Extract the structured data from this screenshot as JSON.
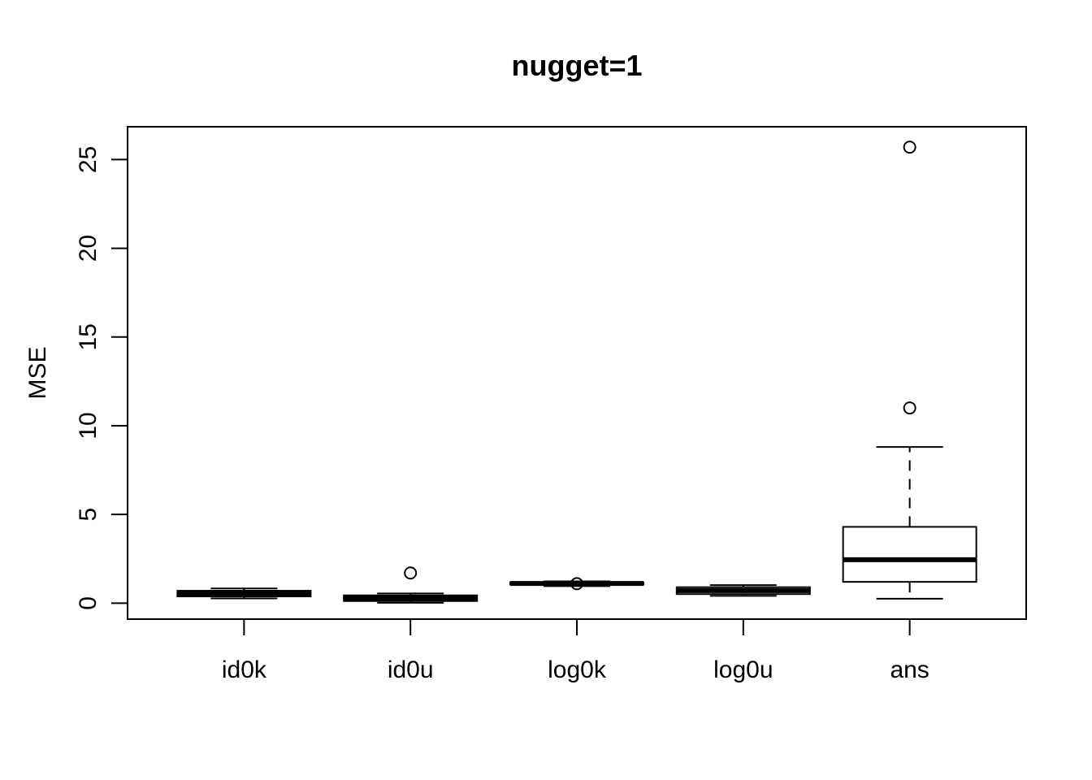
{
  "figure": {
    "background": "#ffffff",
    "foreground": "#000000"
  },
  "chart_data": {
    "type": "boxplot",
    "title": "nugget=1",
    "xlabel": "",
    "ylabel": "MSE",
    "categories": [
      "id0k",
      "id0u",
      "log0k",
      "log0u",
      "ans"
    ],
    "y_ticks": [
      0,
      5,
      10,
      15,
      20,
      25
    ],
    "ylim": [
      -0.9,
      26.85
    ],
    "grid": false,
    "legend": "none",
    "series": [
      {
        "name": "id0k",
        "whisker_low": 0.27,
        "q1": 0.38,
        "median": 0.55,
        "q3": 0.7,
        "whisker_high": 0.83,
        "outliers": []
      },
      {
        "name": "id0u",
        "whisker_low": 0.02,
        "q1": 0.12,
        "median": 0.28,
        "q3": 0.44,
        "whisker_high": 0.55,
        "outliers": [
          1.7
        ]
      },
      {
        "name": "log0k",
        "whisker_low": 0.96,
        "q1": 1.05,
        "median": 1.11,
        "q3": 1.17,
        "whisker_high": 1.23,
        "outliers": [
          1.1
        ]
      },
      {
        "name": "log0u",
        "whisker_low": 0.41,
        "q1": 0.51,
        "median": 0.71,
        "q3": 0.9,
        "whisker_high": 1.02,
        "outliers": []
      },
      {
        "name": "ans",
        "whisker_low": 0.25,
        "q1": 1.2,
        "median": 2.45,
        "q3": 4.3,
        "whisker_high": 8.8,
        "outliers": [
          11.0,
          25.7
        ]
      }
    ]
  }
}
